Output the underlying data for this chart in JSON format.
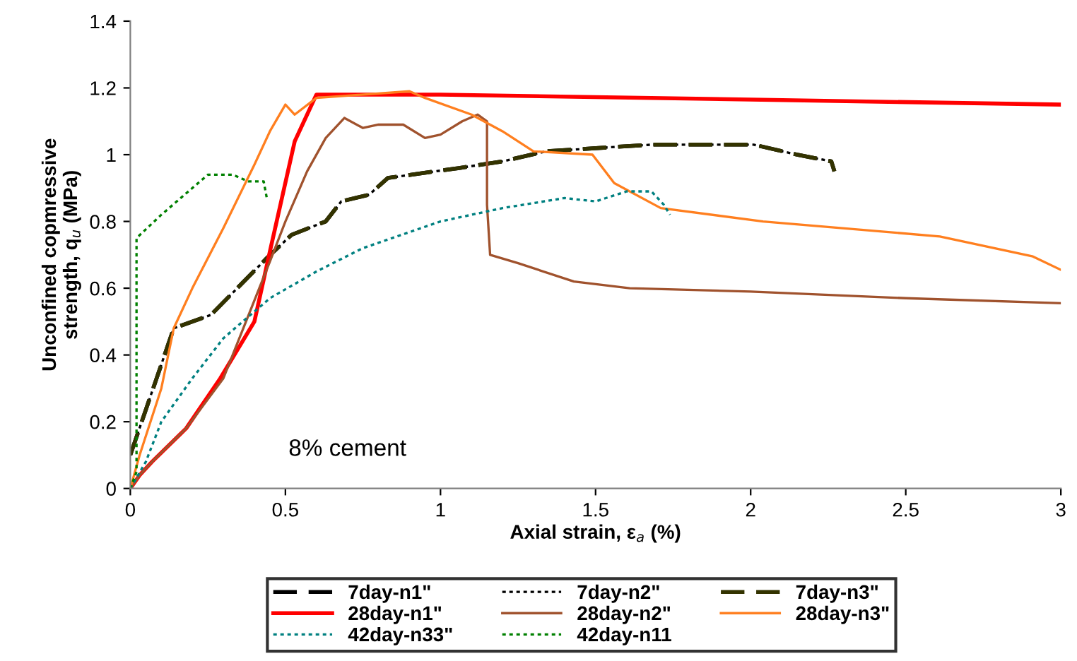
{
  "chart_data": {
    "type": "line",
    "xlabel": "Axial strain, ε$_{a}$ (%)",
    "ylabel": "Unconfined copmressive\nstrength, q$_{u}$ (MPa)",
    "xlim": [
      0,
      3
    ],
    "ylim": [
      0,
      1.4
    ],
    "xticks": [
      0,
      0.5,
      1,
      1.5,
      2,
      2.5,
      3
    ],
    "yticks": [
      0,
      0.2,
      0.4,
      0.6,
      0.8,
      1,
      1.2,
      1.4
    ],
    "grid": false,
    "legend": "bottom",
    "marker": "none",
    "annotations": [
      "8% cement"
    ],
    "series": [
      {
        "name": "7day-n1\"",
        "color": "#000000",
        "line_style": "dashed",
        "x": [
          0,
          0.14,
          0.26,
          0.44,
          0.52,
          0.63,
          0.68,
          0.77,
          0.83,
          1.06,
          1.2,
          1.34,
          1.68,
          2.01,
          2.15,
          2.26,
          2.27
        ],
        "values": [
          0.1,
          0.48,
          0.52,
          0.69,
          0.76,
          0.8,
          0.86,
          0.88,
          0.93,
          0.96,
          0.98,
          1.01,
          1.03,
          1.03,
          1.0,
          0.98,
          0.95
        ]
      },
      {
        "name": "7day-n2\"",
        "color": "#000000",
        "line_style": "dotted",
        "x": [
          0,
          0.14,
          0.26,
          0.44,
          0.52,
          0.63,
          0.68,
          0.77,
          0.83,
          1.06,
          1.2,
          1.34,
          1.68,
          2.01,
          2.15,
          2.26,
          2.27
        ],
        "values": [
          0.1,
          0.48,
          0.52,
          0.69,
          0.76,
          0.8,
          0.86,
          0.88,
          0.93,
          0.96,
          0.98,
          1.01,
          1.03,
          1.03,
          1.0,
          0.98,
          0.95
        ]
      },
      {
        "name": "7day-n3\"",
        "color": "#333300",
        "line_style": "dashed",
        "x": [
          0,
          0.14,
          0.26,
          0.44,
          0.52,
          0.63,
          0.68,
          0.77,
          0.83,
          1.06,
          1.2,
          1.34,
          1.68,
          2.01,
          2.15,
          2.26,
          2.27
        ],
        "values": [
          0.1,
          0.48,
          0.52,
          0.69,
          0.76,
          0.8,
          0.86,
          0.88,
          0.93,
          0.96,
          0.98,
          1.01,
          1.03,
          1.03,
          1.0,
          0.98,
          0.95
        ]
      },
      {
        "name": "28day-n1\"",
        "color": "#ff0000",
        "line_style": "solid",
        "x": [
          0,
          0.03,
          0.07,
          0.18,
          0.29,
          0.4,
          0.45,
          0.53,
          0.6,
          1,
          2,
          3
        ],
        "values": [
          0,
          0.04,
          0.08,
          0.18,
          0.33,
          0.5,
          0.71,
          1.04,
          1.18,
          1.18,
          1.165,
          1.15
        ]
      },
      {
        "name": "28day-n2\"",
        "color": "#a0522d",
        "line_style": "solid",
        "x": [
          0,
          0.03,
          0.07,
          0.18,
          0.3,
          0.45,
          0.5,
          0.57,
          0.63,
          0.69,
          0.75,
          0.8,
          0.88,
          0.95,
          1.0,
          1.07,
          1.12,
          1.15,
          1.15,
          1.16,
          1.25,
          1.43,
          1.61,
          2.0,
          2.5,
          3
        ],
        "values": [
          0,
          0.04,
          0.08,
          0.18,
          0.33,
          0.68,
          0.8,
          0.95,
          1.05,
          1.11,
          1.08,
          1.09,
          1.09,
          1.05,
          1.06,
          1.1,
          1.12,
          1.1,
          0.85,
          0.7,
          0.675,
          0.62,
          0.6,
          0.59,
          0.57,
          0.555
        ]
      },
      {
        "name": "28day-n3\"",
        "color": "#ff7f1f",
        "line_style": "solid",
        "x": [
          0,
          0.03,
          0.1,
          0.14,
          0.2,
          0.3,
          0.4,
          0.45,
          0.5,
          0.53,
          0.6,
          0.9,
          0.95,
          1.1,
          1.2,
          1.3,
          1.49,
          1.56,
          1.71,
          2.04,
          2.61,
          2.91,
          3
        ],
        "values": [
          0,
          0.1,
          0.3,
          0.48,
          0.6,
          0.78,
          0.97,
          1.07,
          1.15,
          1.12,
          1.17,
          1.19,
          1.17,
          1.12,
          1.07,
          1.01,
          1.0,
          0.915,
          0.84,
          0.8,
          0.755,
          0.695,
          0.655
        ]
      },
      {
        "name": "42day-n33\"",
        "color": "#008080",
        "line_style": "dotted",
        "x": [
          0,
          0.05,
          0.1,
          0.2,
          0.3,
          0.45,
          0.6,
          0.75,
          1.0,
          1.2,
          1.4,
          1.5,
          1.6,
          1.68,
          1.72,
          1.74
        ],
        "values": [
          0,
          0.08,
          0.2,
          0.33,
          0.45,
          0.57,
          0.65,
          0.72,
          0.8,
          0.84,
          0.87,
          0.86,
          0.89,
          0.89,
          0.85,
          0.82
        ]
      },
      {
        "name": "42day-n11",
        "color": "#008000",
        "line_style": "dotted",
        "x": [
          0,
          0.02,
          0.02,
          0.1,
          0.2,
          0.25,
          0.33,
          0.38,
          0.43,
          0.44
        ],
        "values": [
          0,
          0.05,
          0.75,
          0.82,
          0.9,
          0.94,
          0.94,
          0.92,
          0.92,
          0.87
        ]
      }
    ]
  }
}
